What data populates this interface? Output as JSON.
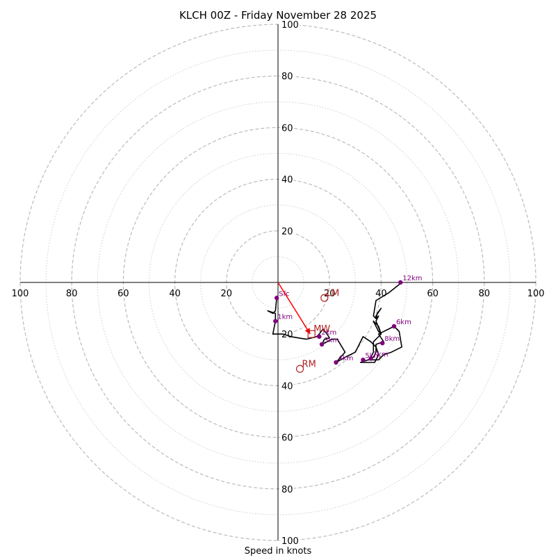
{
  "chart_data": {
    "type": "hodograph",
    "title": "KLCH 00Z - Friday November 28 2025",
    "xlabel": "Speed in knots",
    "ylim": [
      0,
      100
    ],
    "ring_major": [
      20,
      40,
      60,
      80,
      100
    ],
    "ring_minor": [
      10,
      30,
      50,
      70,
      90
    ],
    "ticks": [
      20,
      40,
      60,
      80,
      100
    ],
    "colors": {
      "trace": "#000000",
      "height_points": "#800080",
      "markers": "#b22222",
      "mean_wind_arrow": "#ff0000",
      "ring_major": "#bbbbbb",
      "ring_minor": "#cccccc"
    },
    "trace": [
      [
        -0.5,
        -6
      ],
      [
        -1,
        -11
      ],
      [
        -2,
        -12
      ],
      [
        -4,
        -11
      ],
      [
        -1,
        -12
      ],
      [
        -1,
        -15
      ],
      [
        -2,
        -20
      ],
      [
        2,
        -20
      ],
      [
        5,
        -21
      ],
      [
        8,
        -21.5
      ],
      [
        11,
        -22
      ],
      [
        13,
        -21.5
      ],
      [
        15,
        -21
      ],
      [
        16,
        -20
      ],
      [
        17.5,
        -18
      ],
      [
        19,
        -20
      ],
      [
        20,
        -21.5
      ],
      [
        18,
        -22
      ],
      [
        17,
        -24
      ],
      [
        21,
        -22
      ],
      [
        23,
        -22
      ],
      [
        26,
        -27
      ],
      [
        22.5,
        -31
      ],
      [
        26,
        -29
      ],
      [
        30,
        -27
      ],
      [
        33,
        -21
      ],
      [
        36,
        -23
      ],
      [
        38,
        -25
      ],
      [
        39,
        -28
      ],
      [
        37.5,
        -31
      ],
      [
        32,
        -31
      ],
      [
        35,
        -30
      ],
      [
        39,
        -30
      ],
      [
        41,
        -28
      ],
      [
        44,
        -27
      ],
      [
        48,
        -25
      ],
      [
        47,
        -19
      ],
      [
        45,
        -17
      ],
      [
        39,
        -20
      ],
      [
        41,
        -23
      ],
      [
        38,
        -24
      ],
      [
        38,
        -27
      ],
      [
        37,
        -29
      ],
      [
        36,
        -29
      ],
      [
        37,
        -27
      ],
      [
        37,
        -23
      ],
      [
        40,
        -20
      ],
      [
        39,
        -17
      ],
      [
        37,
        -15
      ],
      [
        39,
        -19
      ],
      [
        40,
        -20
      ],
      [
        38,
        -15
      ],
      [
        39,
        -13
      ],
      [
        38,
        -14
      ],
      [
        38.5,
        -12
      ],
      [
        40,
        -10
      ],
      [
        38,
        -13
      ],
      [
        38,
        -14
      ],
      [
        37,
        -13
      ],
      [
        38,
        -7
      ],
      [
        43,
        -4
      ],
      [
        48,
        0
      ]
    ],
    "height_points": [
      {
        "label": "Sfc",
        "u": -0.5,
        "v": -6
      },
      {
        "label": "1km",
        "u": -1,
        "v": -15
      },
      {
        "label": "2km",
        "u": 16,
        "v": -21
      },
      {
        "label": "3km",
        "u": 17,
        "v": -24
      },
      {
        "label": "4km",
        "u": 22.5,
        "v": -31
      },
      {
        "label": "5km",
        "u": 33,
        "v": -30
      },
      {
        "label": "7km",
        "u": 36,
        "v": -29.5
      },
      {
        "label": "8km",
        "u": 40.5,
        "v": -23.5
      },
      {
        "label": "6km",
        "u": 45,
        "v": -17
      },
      {
        "label": "12km",
        "u": 47.5,
        "v": 0
      }
    ],
    "markers": [
      {
        "label": "LM",
        "u": 18,
        "v": -6
      },
      {
        "label": "MW",
        "u": 13,
        "v": -20
      },
      {
        "label": "RM",
        "u": 8.5,
        "v": -33.5
      }
    ],
    "mean_wind_arrow": {
      "u": 12.5,
      "v": -20
    }
  }
}
